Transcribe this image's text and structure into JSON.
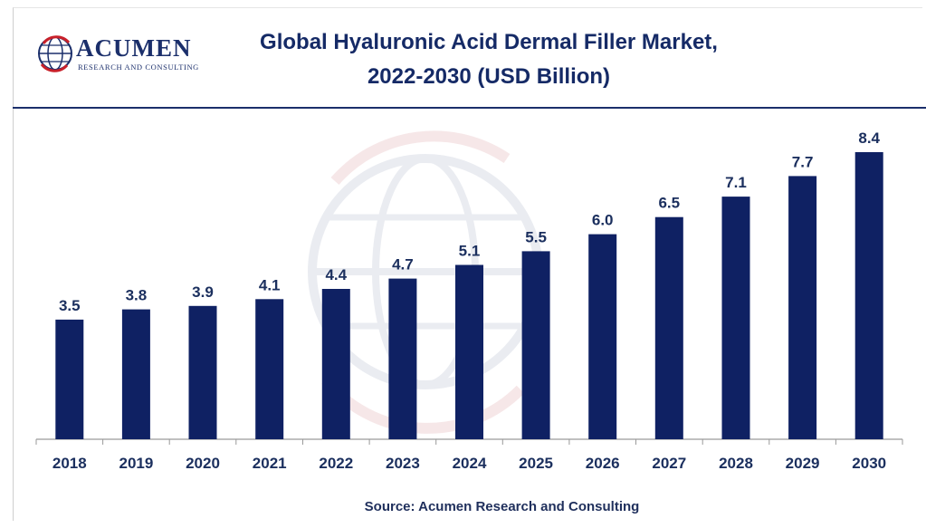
{
  "logo": {
    "name": "ACUMEN",
    "tagline": "RESEARCH AND CONSULTING"
  },
  "title_line1": "Global Hyaluronic Acid Dermal Filler Market,",
  "title_line2": "2022-2030 (USD Billion)",
  "source": "Source: Acumen Research and Consulting",
  "colors": {
    "bar": "#0f2163",
    "label": "#1b2f5e",
    "axis": "#9a9a9a",
    "watermark": "#d9dde6"
  },
  "chart_data": {
    "type": "bar",
    "title": "Global Hyaluronic Acid Dermal Filler Market, 2022-2030 (USD Billion)",
    "categories": [
      "2018",
      "2019",
      "2020",
      "2021",
      "2022",
      "2023",
      "2024",
      "2025",
      "2026",
      "2027",
      "2028",
      "2029",
      "2030"
    ],
    "values": [
      3.5,
      3.8,
      3.9,
      4.1,
      4.4,
      4.7,
      5.1,
      5.5,
      6.0,
      6.5,
      7.1,
      7.7,
      8.4
    ],
    "value_labels": [
      "3.5",
      "3.8",
      "3.9",
      "4.1",
      "4.4",
      "4.7",
      "5.1",
      "5.5",
      "6.0",
      "6.5",
      "7.1",
      "7.7",
      "8.4"
    ],
    "xlabel": "",
    "ylabel": "",
    "ylim": [
      0,
      8.4
    ],
    "grid": false,
    "legend": "none"
  }
}
